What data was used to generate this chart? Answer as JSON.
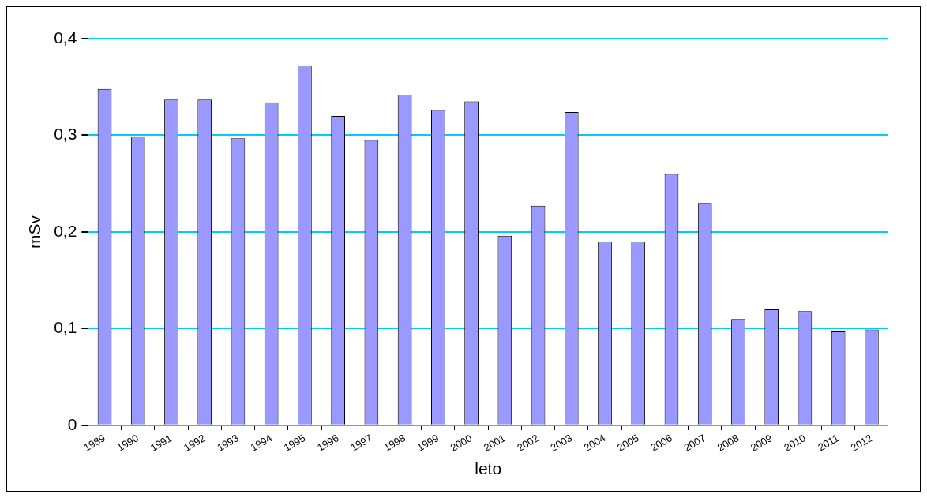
{
  "chart_data": {
    "type": "bar",
    "xlabel": "leto",
    "ylabel": "mSv",
    "categories": [
      "1989",
      "1990",
      "1991",
      "1992",
      "1993",
      "1994",
      "1995",
      "1996",
      "1997",
      "1998",
      "1999",
      "2000",
      "2001",
      "2002",
      "2003",
      "2004",
      "2005",
      "2006",
      "2007",
      "2008",
      "2009",
      "2010",
      "2011",
      "2012"
    ],
    "values": [
      0.348,
      0.299,
      0.337,
      0.337,
      0.297,
      0.334,
      0.372,
      0.32,
      0.295,
      0.342,
      0.326,
      0.335,
      0.196,
      0.227,
      0.324,
      0.19,
      0.19,
      0.26,
      0.23,
      0.11,
      0.12,
      0.118,
      0.097,
      0.099
    ],
    "color": "#9999ff",
    "ylim": [
      0,
      0.4
    ],
    "yticks": [
      0,
      {
        "value": 0.1,
        "label": "0,1"
      },
      {
        "value": 0.2,
        "label": "0,2"
      },
      {
        "value": 0.3,
        "label": "0,3"
      },
      {
        "value": 0.4,
        "label": "0,4"
      }
    ],
    "grid": "y"
  }
}
